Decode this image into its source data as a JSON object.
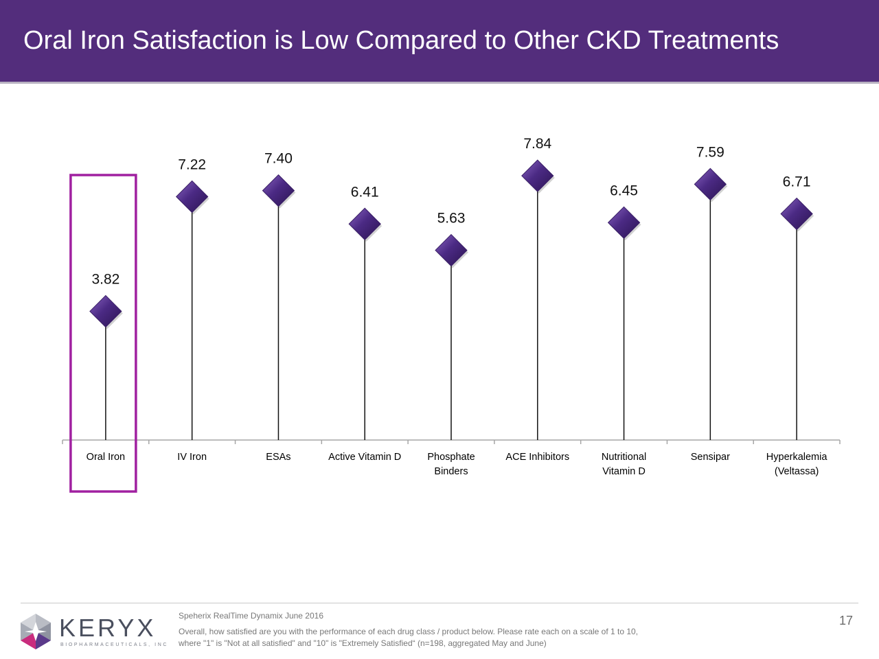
{
  "header": {
    "title": "Oral Iron Satisfaction is Low Compared to Other CKD Treatments"
  },
  "colors": {
    "header_bg": "#532d7c",
    "marker": "#4b2a84",
    "highlight": "#a020a0",
    "stem": "#111111",
    "axis": "#a6a6a6"
  },
  "chart_data": {
    "type": "scatter",
    "style": "lollipop-diamond",
    "title": "",
    "xlabel": "",
    "ylabel": "",
    "ylim": [
      0,
      10
    ],
    "grid": false,
    "legend": "none",
    "categories": [
      [
        "Oral Iron"
      ],
      [
        "IV Iron"
      ],
      [
        "ESAs"
      ],
      [
        "Active Vitamin D"
      ],
      [
        "Phosphate",
        "Binders"
      ],
      [
        "ACE Inhibitors"
      ],
      [
        "Nutritional",
        "Vitamin D"
      ],
      [
        "Sensipar"
      ],
      [
        "Hyperkalemia",
        "(Veltassa)"
      ]
    ],
    "values": [
      3.82,
      7.22,
      7.4,
      6.41,
      5.63,
      7.84,
      6.45,
      7.59,
      6.71
    ],
    "data_labels": [
      "3.82",
      "7.22",
      "7.40",
      "6.41",
      "5.63",
      "7.84",
      "6.45",
      "7.59",
      "6.71"
    ],
    "highlighted_category": "Oral Iron"
  },
  "footer": {
    "source": "Speherix RealTime Dynamix June 2016",
    "note_line1": "Overall, how satisfied are you with the performance of each drug class / product below. Please rate each on a scale of 1 to 10,",
    "note_line2": "where \"1\" is \"Not at all satisfied\" and \"10\" is \"Extremely Satisfied“ (n=198, aggregated May and June)",
    "page_number": "17",
    "logo_word": "KERYX",
    "logo_sub": "BIOPHARMACEUTICALS, INC"
  }
}
